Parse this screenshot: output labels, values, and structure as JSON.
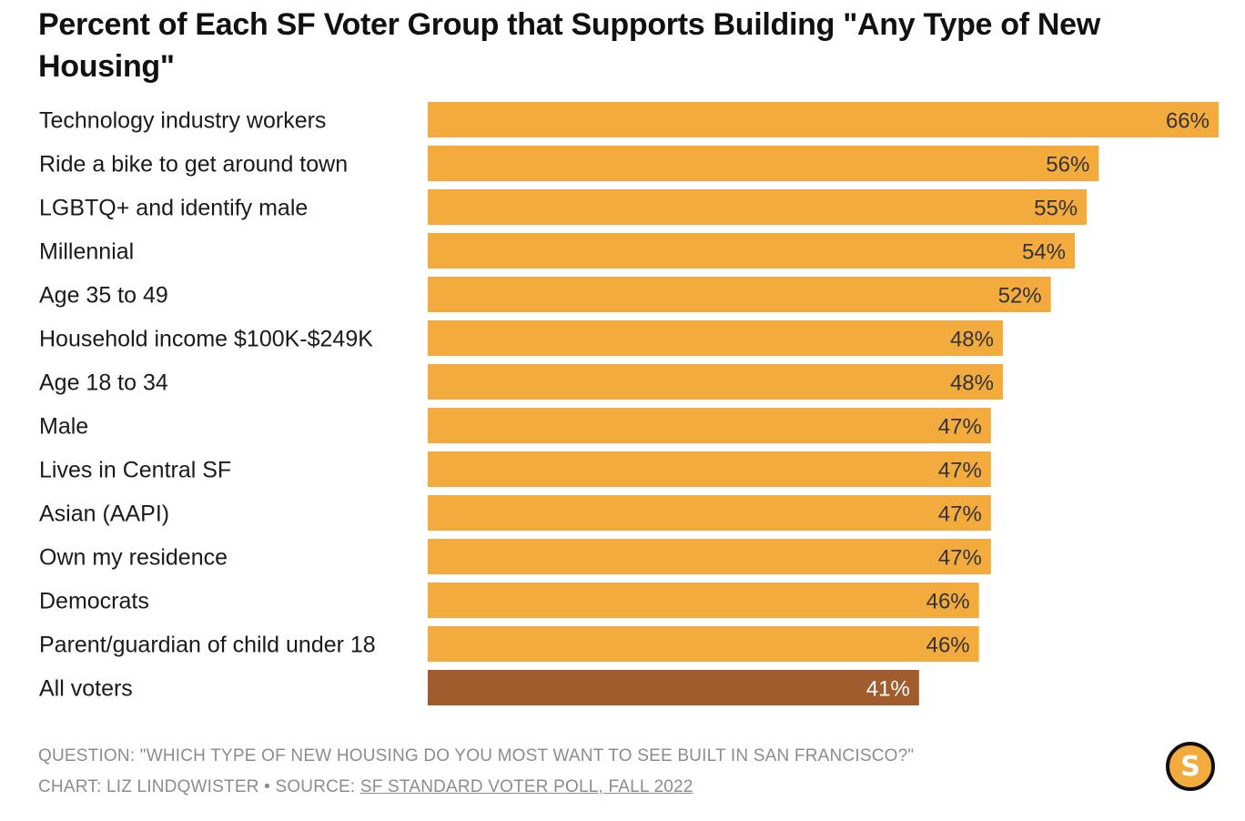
{
  "title": "Percent of Each SF Voter Group that Supports Building \"Any Type of New Housing\"",
  "footer": {
    "question": "QUESTION: \"WHICH TYPE OF NEW HOUSING DO YOU MOST WANT TO SEE BUILT IN SAN FRANCISCO?\"",
    "credit_prefix": "CHART: LIZ LINDQWISTER • SOURCE: ",
    "source_link": "SF STANDARD VOTER POLL, FALL 2022"
  },
  "logo_letter": "S",
  "colors": {
    "bar": "#f2ab3c",
    "highlight_bar": "#a05c2c"
  },
  "chart_data": {
    "type": "bar",
    "orientation": "horizontal",
    "title": "Percent of Each SF Voter Group that Supports Building \"Any Type of New Housing\"",
    "value_suffix": "%",
    "xlim": [
      0,
      66
    ],
    "grid": false,
    "legend": "none",
    "categories": [
      "Technology industry workers",
      "Ride a bike to get around town",
      "LGBTQ+ and identify male",
      "Millennial",
      "Age 35 to 49",
      "Household income $100K-$249K",
      "Age 18 to 34",
      "Male",
      "Lives in Central SF",
      "Asian (AAPI)",
      "Own my residence",
      "Democrats",
      "Parent/guardian of child under 18",
      "All voters"
    ],
    "values": [
      66,
      56,
      55,
      54,
      52,
      48,
      48,
      47,
      47,
      47,
      47,
      46,
      46,
      41
    ],
    "highlight": "All voters"
  }
}
